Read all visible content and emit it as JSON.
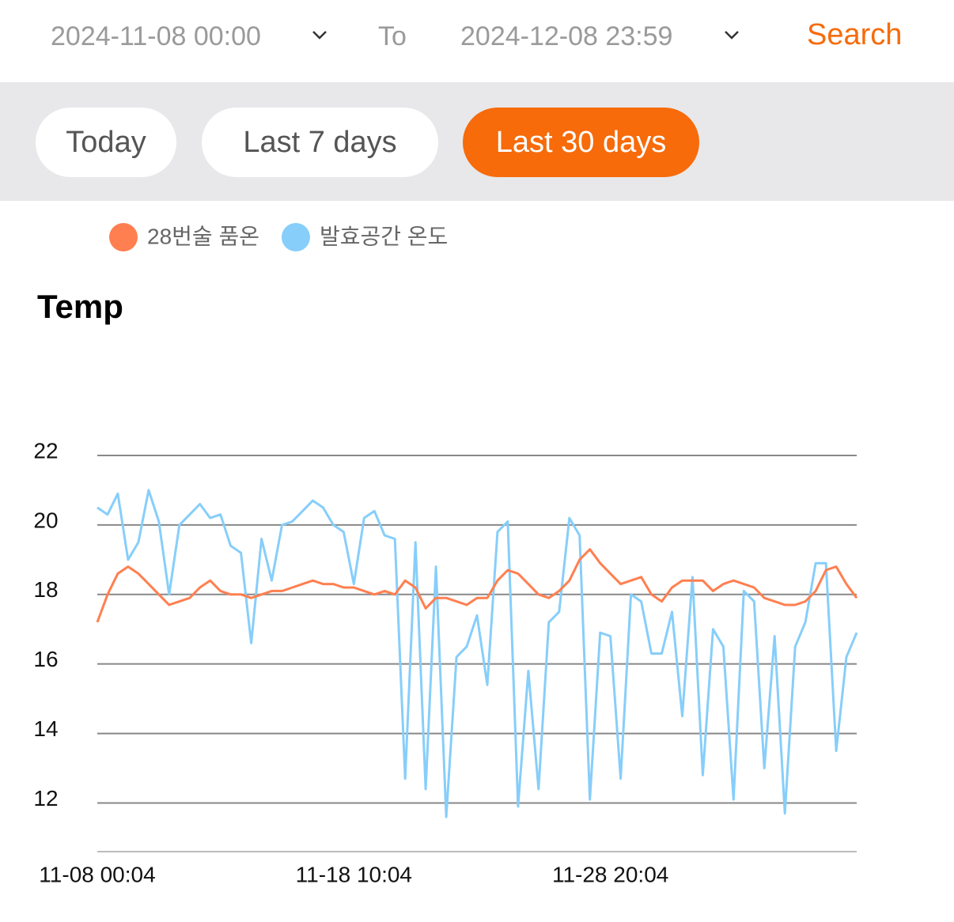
{
  "header": {
    "start_date": "2024-11-08 00:00",
    "separator": "To",
    "end_date": "2024-12-08 23:59",
    "search": "Search"
  },
  "filters": {
    "options": [
      "Today",
      "Last 7 days",
      "Last 30 days"
    ],
    "active": 2
  },
  "chart_data": {
    "type": "line",
    "title": "Temp",
    "categories": [
      "11-08 00:04",
      null,
      null,
      null,
      null,
      null,
      null,
      null,
      null,
      null,
      null,
      null,
      null,
      null,
      null,
      null,
      null,
      null,
      null,
      null,
      null,
      null,
      null,
      null,
      null,
      "11-18 10:04",
      null,
      null,
      null,
      null,
      null,
      null,
      null,
      null,
      null,
      null,
      null,
      null,
      null,
      null,
      null,
      null,
      null,
      null,
      null,
      null,
      null,
      null,
      null,
      null,
      "11-28 20:04",
      null,
      null,
      null,
      null,
      null,
      null,
      null,
      null,
      null,
      null,
      null,
      null,
      null,
      null,
      null,
      null,
      null,
      null,
      null,
      null,
      null,
      null,
      null,
      null
    ],
    "series": [
      {
        "name": "28번술 품온",
        "color": "#ff7f50",
        "values": [
          17.2,
          18.0,
          18.6,
          18.8,
          18.6,
          18.3,
          18.0,
          17.7,
          17.8,
          17.9,
          18.2,
          18.4,
          18.1,
          18.0,
          18.0,
          17.9,
          18.0,
          18.1,
          18.1,
          18.2,
          18.3,
          18.4,
          18.3,
          18.3,
          18.2,
          18.2,
          18.1,
          18.0,
          18.1,
          18.0,
          18.4,
          18.2,
          17.6,
          17.9,
          17.9,
          17.8,
          17.7,
          17.9,
          17.9,
          18.4,
          18.7,
          18.6,
          18.3,
          18.0,
          17.9,
          18.1,
          18.4,
          19.0,
          19.3,
          18.9,
          18.6,
          18.3,
          18.4,
          18.5,
          18.0,
          17.8,
          18.2,
          18.4,
          18.4,
          18.4,
          18.1,
          18.3,
          18.4,
          18.3,
          18.2,
          17.9,
          17.8,
          17.7,
          17.7,
          17.8,
          18.1,
          18.7,
          18.8,
          18.3,
          17.9
        ]
      },
      {
        "name": "발효공간 온도",
        "color": "#87cefa",
        "values": [
          20.5,
          20.3,
          20.9,
          19.0,
          19.5,
          21.0,
          20.1,
          18.0,
          20.0,
          20.3,
          20.6,
          20.2,
          20.3,
          19.4,
          19.2,
          16.6,
          19.6,
          18.4,
          20.0,
          20.1,
          20.4,
          20.7,
          20.5,
          20.0,
          19.8,
          18.3,
          20.2,
          20.4,
          19.7,
          19.6,
          12.7,
          19.5,
          12.4,
          18.8,
          11.6,
          16.2,
          16.5,
          17.4,
          15.4,
          19.8,
          20.1,
          11.9,
          15.8,
          12.4,
          17.2,
          17.5,
          20.2,
          19.7,
          12.1,
          16.9,
          16.8,
          12.7,
          18.0,
          17.8,
          16.3,
          16.3,
          17.5,
          14.5,
          18.5,
          12.8,
          17.0,
          16.5,
          12.1,
          18.1,
          17.8,
          13.0,
          16.8,
          11.7,
          16.5,
          17.2,
          18.9,
          18.9,
          13.5,
          16.2,
          16.9
        ]
      }
    ],
    "ylim": [
      10.6,
      22
    ],
    "yticks": [
      12,
      14,
      16,
      18,
      20,
      22
    ],
    "grid": true,
    "legend": "top-left"
  }
}
